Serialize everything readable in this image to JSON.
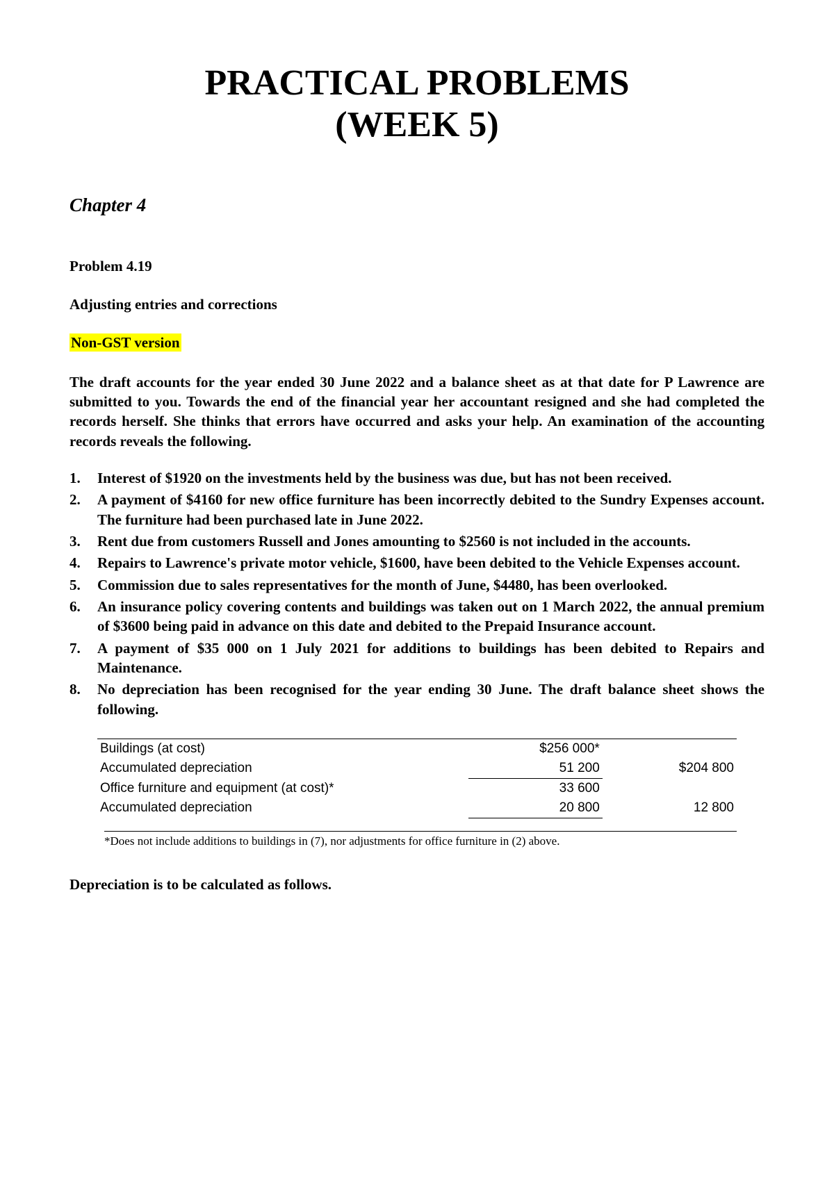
{
  "title_line1": "PRACTICAL PROBLEMS",
  "title_line2": "(WEEK 5)",
  "chapter": "Chapter 4",
  "problem_number": "Problem 4.19",
  "subtitle": "Adjusting entries and corrections",
  "highlight": "Non-GST version",
  "intro": "The draft accounts for the year ended 30 June 2022 and a balance sheet as at that date for P Lawrence are submitted to you. Towards the end of the financial year her accountant resigned and she had completed the records herself. She thinks that errors have occurred and asks your help. An examination of the accounting records reveals the following.",
  "items": [
    "Interest of $1920 on the investments held by the business was due, but has not been received.",
    "A payment of $4160 for new office furniture has been incorrectly debited to the Sundry Expenses account. The furniture had been purchased late in June 2022.",
    "Rent due from customers Russell and Jones amounting to $2560 is not included in the accounts.",
    "Repairs to Lawrence's private motor vehicle, $1600, have been debited to the Vehicle Expenses account.",
    "Commission due to sales representatives for the month of June, $4480, has been overlooked.",
    "An insurance policy covering contents and buildings was taken out on 1 March 2022, the annual premium of $3600 being paid in advance on this date and debited to the Prepaid Insurance account.",
    "A payment of $35 000 on 1 July 2021 for additions to buildings has been debited to Repairs and Maintenance.",
    "No depreciation has been recognised for the year ending 30 June. The draft balance sheet shows the following."
  ],
  "table": {
    "rows": [
      {
        "label": "Buildings (at cost)",
        "a": "$256 000*",
        "b": ""
      },
      {
        "label": "Accumulated depreciation",
        "a": "51 200",
        "b": "$204 800"
      },
      {
        "label": "Office furniture and equipment (at cost)*",
        "a": "33 600",
        "b": ""
      },
      {
        "label": "Accumulated depreciation",
        "a": "20 800",
        "b": "12 800"
      }
    ]
  },
  "footnote": "*Does not include additions to buildings in (7), nor adjustments for office furniture in (2) above.",
  "closing": "Depreciation is to be calculated as follows.",
  "colors": {
    "highlight_bg": "#ffff00",
    "text": "#000000",
    "background": "#ffffff"
  }
}
